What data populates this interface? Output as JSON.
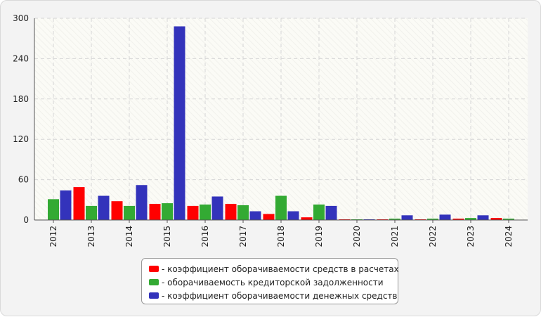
{
  "chart_data": {
    "type": "bar",
    "categories": [
      "2012",
      "2013",
      "2014",
      "2015",
      "2016",
      "2017",
      "2018",
      "2019",
      "2020",
      "2021",
      "2022",
      "2023",
      "2024"
    ],
    "ylim": [
      0,
      300
    ],
    "yticks": [
      0,
      60,
      120,
      180,
      240,
      300
    ],
    "grid": true,
    "legend_position": "bottom-center",
    "series": [
      {
        "name": "- коэффициент оборачиваемости средств в расчетах",
        "color": "#ff0000",
        "values": [
          0,
          49,
          28,
          24,
          21,
          24,
          9,
          4,
          1,
          1,
          1,
          2,
          3
        ]
      },
      {
        "name": "- оборачиваемость кредиторской задолженности",
        "color": "#33aa33",
        "values": [
          31,
          21,
          21,
          25,
          23,
          22,
          36,
          23,
          1,
          2,
          2,
          3,
          2
        ]
      },
      {
        "name": "- коэффициент оборачиваемости денежных средств",
        "color": "#3333bb",
        "values": [
          44,
          36,
          52,
          288,
          35,
          13,
          13,
          21,
          1,
          7,
          8,
          7,
          0
        ]
      }
    ]
  }
}
